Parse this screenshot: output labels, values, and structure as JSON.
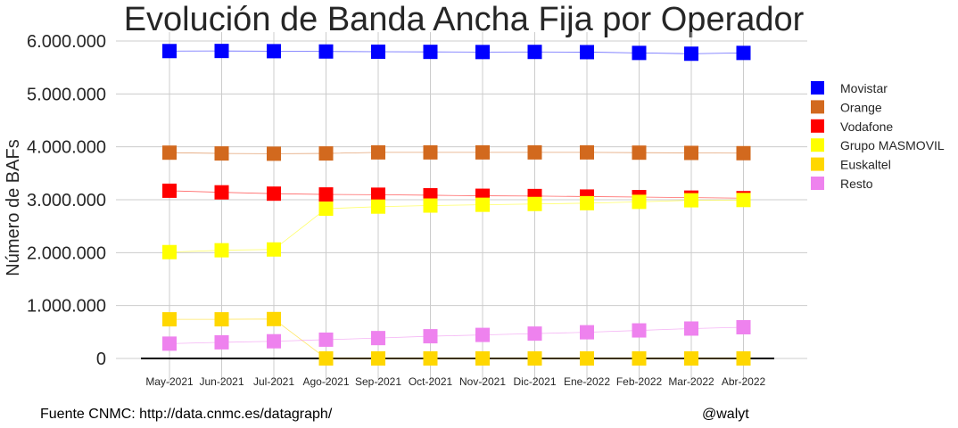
{
  "chart_data": {
    "type": "line",
    "title": "Evolución de Banda Ancha Fija por Operador",
    "ylabel": "Número de BAFs",
    "xlabel": "",
    "categories": [
      "May-2021",
      "Jun-2021",
      "Jul-2021",
      "Ago-2021",
      "Sep-2021",
      "Oct-2021",
      "Nov-2021",
      "Dic-2021",
      "Ene-2022",
      "Feb-2022",
      "Mar-2022",
      "Abr-2022"
    ],
    "ylim": [
      -250000,
      6100000
    ],
    "yticks": [
      0,
      1000000,
      2000000,
      3000000,
      4000000,
      5000000,
      6000000
    ],
    "ytick_labels": [
      "0",
      "1.000.000",
      "2.000.000",
      "3.000.000",
      "4.000.000",
      "5.000.000",
      "6.000.000"
    ],
    "grid": true,
    "legend_position": "right",
    "marker": "square",
    "series": [
      {
        "name": "Movistar",
        "color": "#0000ff",
        "values": [
          5810000,
          5812000,
          5808000,
          5802000,
          5798000,
          5795000,
          5792000,
          5794000,
          5790000,
          5775000,
          5760000,
          5775000
        ]
      },
      {
        "name": "Orange",
        "color": "#d2691e",
        "values": [
          3890000,
          3875000,
          3870000,
          3875000,
          3895000,
          3895000,
          3895000,
          3895000,
          3895000,
          3890000,
          3885000,
          3880000
        ]
      },
      {
        "name": "Vodafone",
        "color": "#ff0000",
        "values": [
          3170000,
          3140000,
          3115000,
          3100000,
          3095000,
          3085000,
          3075000,
          3070000,
          3060000,
          3050000,
          3040000,
          3030000
        ]
      },
      {
        "name": "Grupo MASMOVIL",
        "color": "#ffff00",
        "values": [
          2010000,
          2045000,
          2060000,
          2830000,
          2870000,
          2890000,
          2905000,
          2920000,
          2935000,
          2960000,
          2990000,
          2995000
        ]
      },
      {
        "name": "Euskaltel",
        "color": "#ffd700",
        "values": [
          740000,
          740000,
          745000,
          0,
          0,
          0,
          0,
          0,
          0,
          0,
          0,
          0
        ]
      },
      {
        "name": "Resto",
        "color": "#ee82ee",
        "values": [
          280000,
          305000,
          325000,
          355000,
          385000,
          420000,
          445000,
          470000,
          495000,
          530000,
          565000,
          590000
        ]
      }
    ]
  },
  "footer": {
    "source": "Fuente CNMC: http://data.cnmc.es/datagraph/",
    "author": "@walyt"
  }
}
